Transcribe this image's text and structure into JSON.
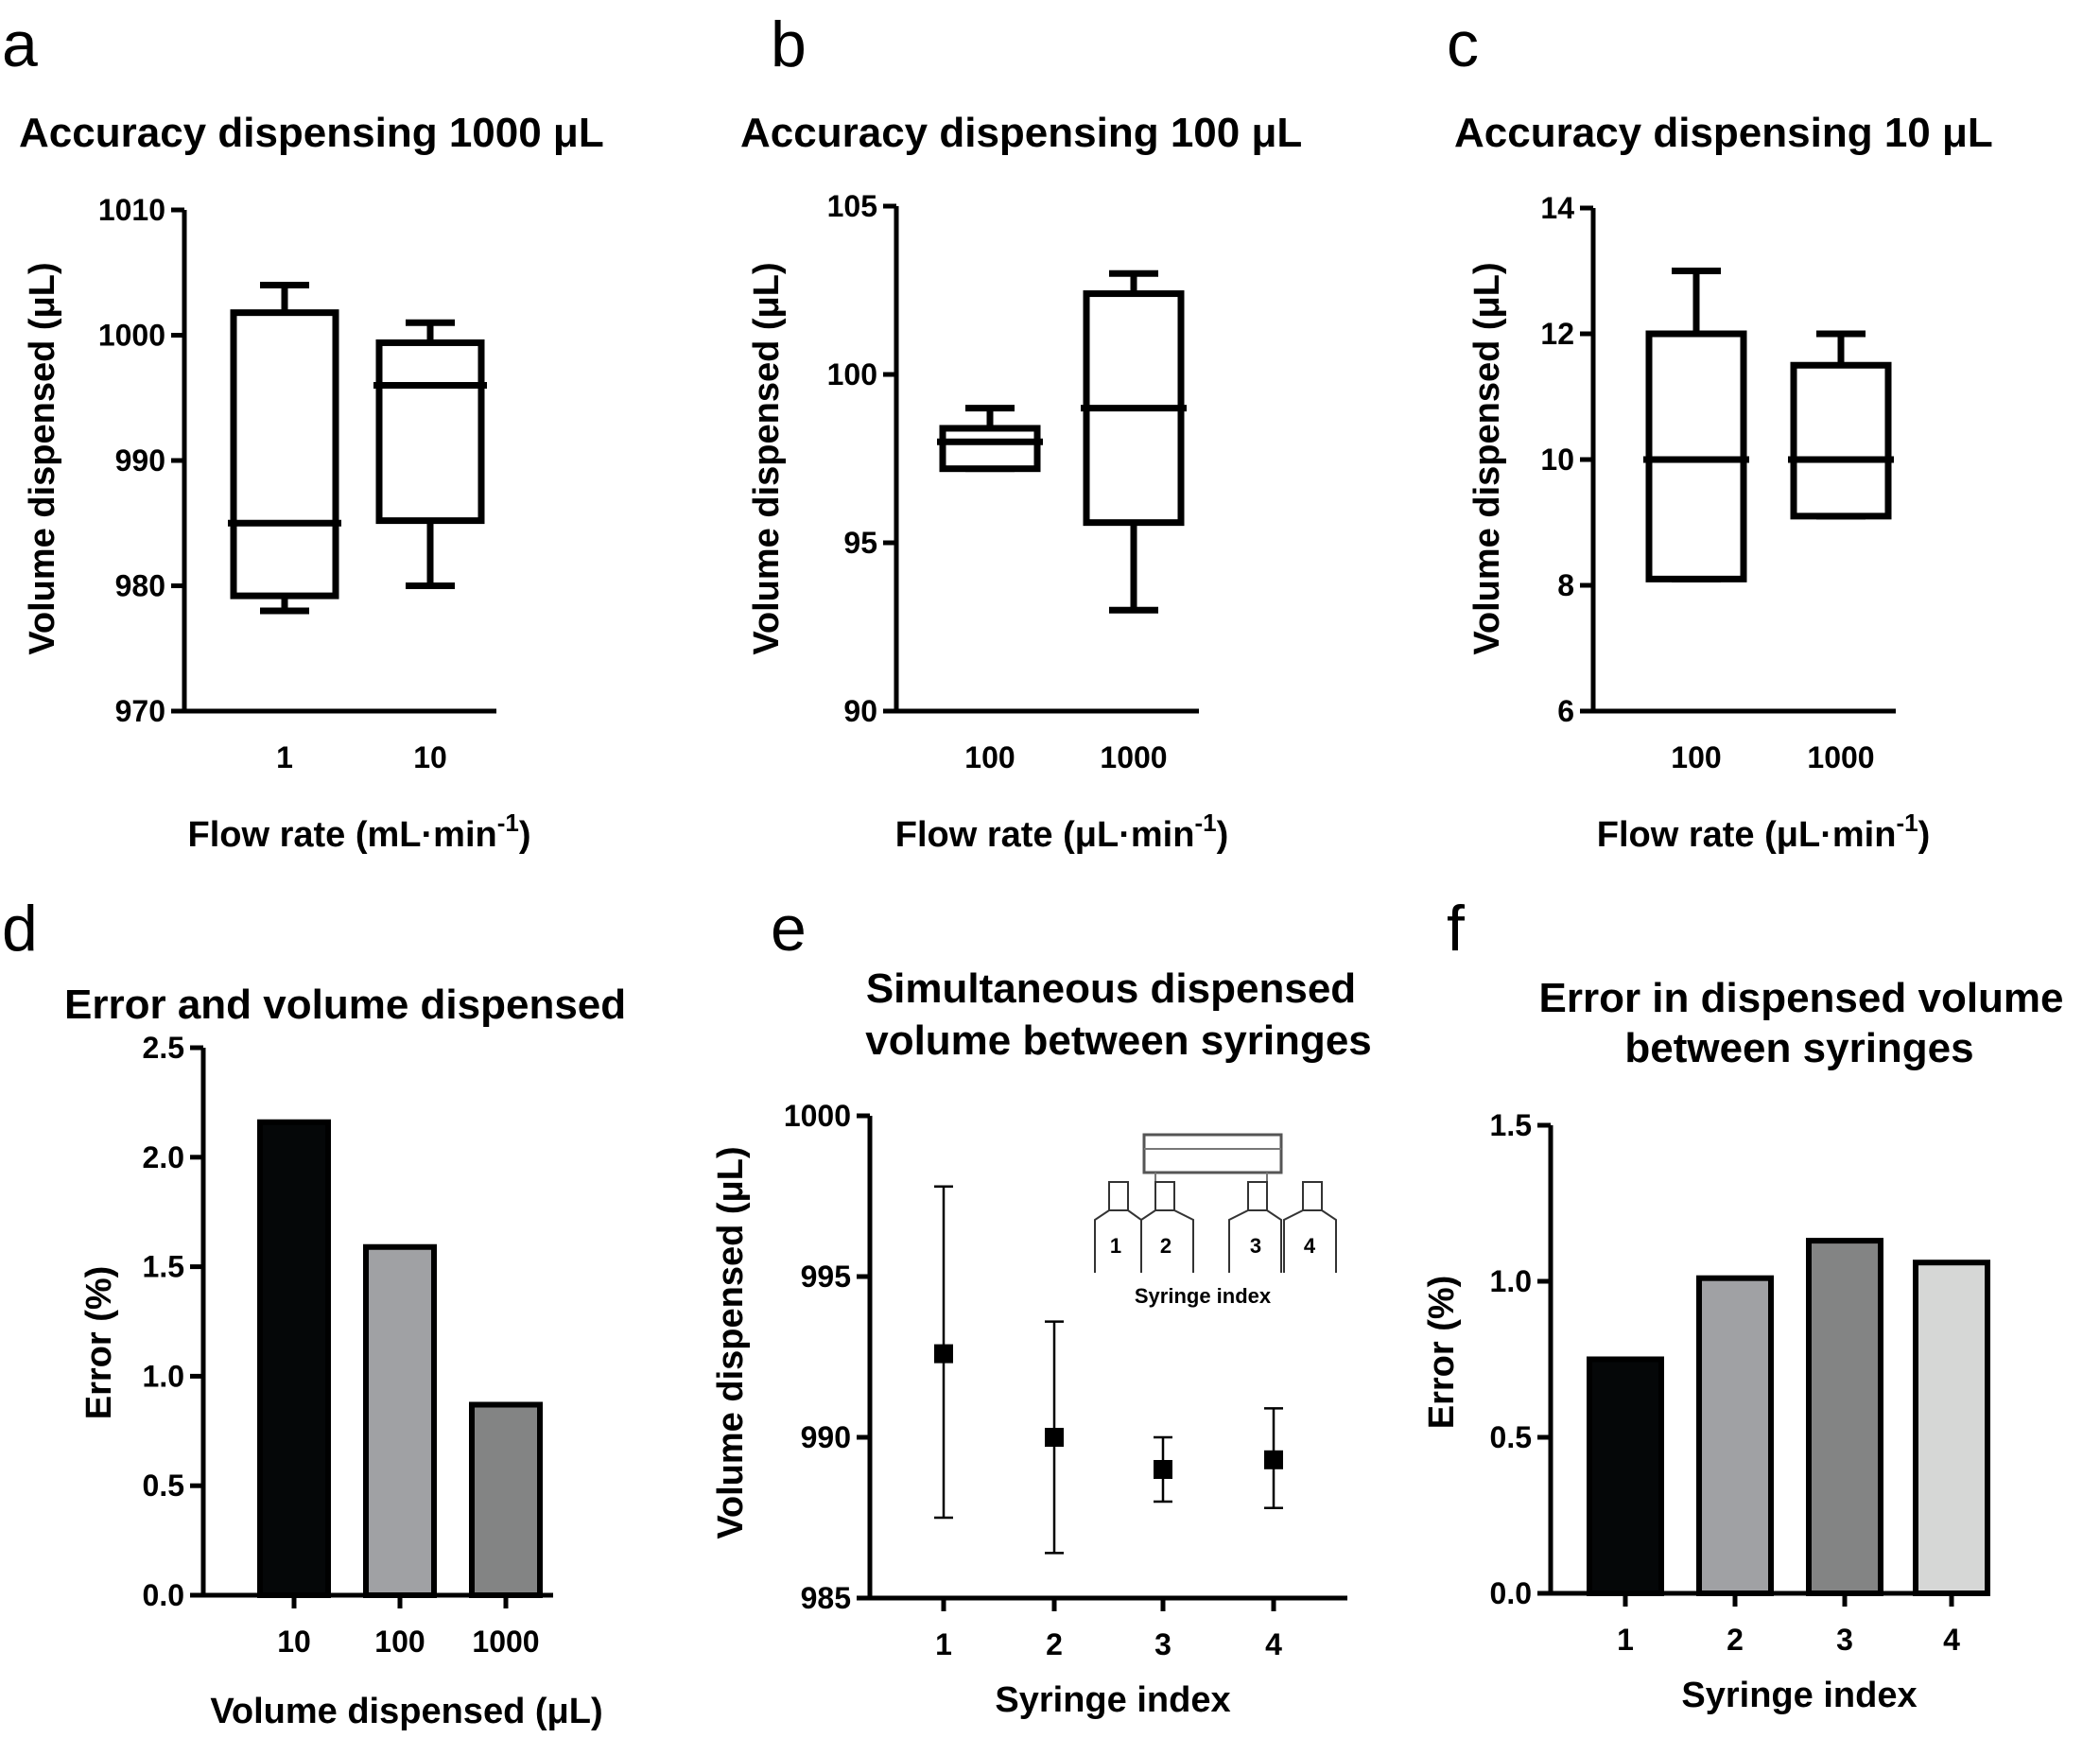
{
  "colors": {
    "black": "#050708",
    "gray_mid": "#a0a1a4",
    "gray_dark": "#838484",
    "gray_light": "#d6d7d6"
  },
  "chart_data": [
    {
      "id": "a",
      "type": "box",
      "panel_letter": "a",
      "title": "Accuracy dispensing 1000 μL",
      "ylabel": "Volume dispensed (μL)",
      "xlabel_main": "Flow rate (mL·min",
      "xlabel_sup": "-1",
      "xlabel_end": ")",
      "ylim": [
        970,
        1010
      ],
      "yticks": [
        "970",
        "980",
        "990",
        "1000",
        "1010"
      ],
      "categories": [
        "1",
        "10"
      ],
      "boxes": [
        {
          "min": 978,
          "q1": 979.2,
          "median": 985,
          "q3": 1001.8,
          "max": 1004
        },
        {
          "min": 980,
          "q1": 985.2,
          "median": 996,
          "q3": 999.4,
          "max": 1001
        }
      ]
    },
    {
      "id": "b",
      "type": "box",
      "panel_letter": "b",
      "title": "Accuracy dispensing 100  μL",
      "ylabel": "Volume dispensed (μL)",
      "xlabel_main": "Flow rate (μL·min",
      "xlabel_sup": "-1",
      "xlabel_end": ")",
      "ylim": [
        90,
        105
      ],
      "yticks": [
        "90",
        "95",
        "100",
        "105"
      ],
      "categories": [
        "100",
        "1000"
      ],
      "boxes": [
        {
          "min": 97.2,
          "q1": 97.2,
          "median": 98,
          "q3": 98.4,
          "max": 99
        },
        {
          "min": 93,
          "q1": 95.6,
          "median": 99,
          "q3": 102.4,
          "max": 103
        }
      ]
    },
    {
      "id": "c",
      "type": "box",
      "panel_letter": "c",
      "title": "Accuracy dispensing 10  μL",
      "ylabel": "Volume dispensed (μL)",
      "xlabel_main": "Flow rate (μL·min",
      "xlabel_sup": "-1",
      "xlabel_end": ")",
      "ylim": [
        6,
        14
      ],
      "yticks": [
        "6",
        "8",
        "10",
        "12",
        "14"
      ],
      "categories": [
        "100",
        "1000"
      ],
      "boxes": [
        {
          "min": 8.1,
          "q1": 8.1,
          "median": 10,
          "q3": 12,
          "max": 13
        },
        {
          "min": 9.1,
          "q1": 9.1,
          "median": 10,
          "q3": 11.5,
          "max": 12
        }
      ]
    },
    {
      "id": "d",
      "type": "bar",
      "panel_letter": "d",
      "title": "Error and volume dispensed",
      "ylabel": "Error (%)",
      "xlabel": "Volume dispensed (μL)",
      "ylim": [
        0,
        2.5
      ],
      "yticks": [
        "0.0",
        "0.5",
        "1.0",
        "1.5",
        "2.0",
        "2.5"
      ],
      "categories": [
        "10",
        "100",
        "1000"
      ],
      "values": [
        2.16,
        1.59,
        0.87
      ],
      "bar_colors": [
        "#050708",
        "#a0a1a4",
        "#838484"
      ]
    },
    {
      "id": "e",
      "type": "scatter",
      "panel_letter": "e",
      "title_line1": "Simultaneous dispensed",
      "title_line2": "volume between syringes",
      "ylabel": "Volume dispensed (μL)",
      "xlabel": "Syringe index",
      "ylim": [
        985,
        1000
      ],
      "yticks": [
        "985",
        "990",
        "995",
        "1000"
      ],
      "categories": [
        "1",
        "2",
        "3",
        "4"
      ],
      "points": [
        {
          "mean": 992.6,
          "low": 987.5,
          "high": 997.8
        },
        {
          "mean": 990.0,
          "low": 986.4,
          "high": 993.6
        },
        {
          "mean": 989.0,
          "low": 988.0,
          "high": 990.0
        },
        {
          "mean": 989.3,
          "low": 987.8,
          "high": 990.9
        }
      ],
      "inset": {
        "labels": [
          "1",
          "2",
          "3",
          "4"
        ],
        "caption": "Syringe index"
      }
    },
    {
      "id": "f",
      "type": "bar",
      "panel_letter": "f",
      "title_line1": "Error in dispensed volume",
      "title_line2": "between syringes",
      "ylabel": "Error (%)",
      "xlabel": "Syringe index",
      "ylim": [
        0,
        1.5
      ],
      "yticks": [
        "0.0",
        "0.5",
        "1.0",
        "1.5"
      ],
      "categories": [
        "1",
        "2",
        "3",
        "4"
      ],
      "values": [
        0.75,
        1.01,
        1.13,
        1.06
      ],
      "bar_colors": [
        "#050708",
        "#a0a1a4",
        "#838484",
        "#d6d7d6"
      ]
    }
  ]
}
